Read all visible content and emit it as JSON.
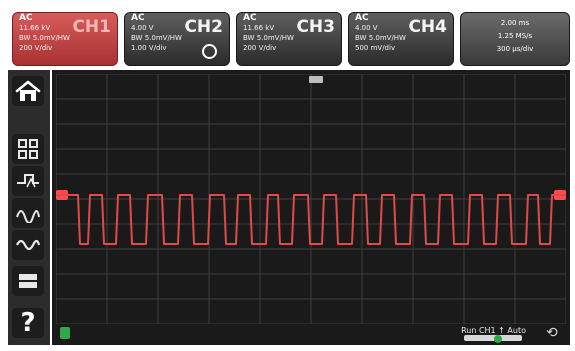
{
  "channels": [
    {
      "name": "CH1",
      "coupling": "AC",
      "lines": [
        "11.66 kV",
        "BW 5.0mV/HW",
        "200 V/div"
      ],
      "active": true,
      "color": "#b83a3a"
    },
    {
      "name": "CH2",
      "coupling": "AC",
      "lines": [
        "4.00 V",
        "BW 5.0mV/HW",
        "1.00 V/div"
      ],
      "active": false,
      "color": "#3b3b3b"
    },
    {
      "name": "CH3",
      "coupling": "AC",
      "lines": [
        "11.66 kV",
        "BW 5.0mV/HW",
        "200 V/div"
      ],
      "active": false,
      "color": "#3b3b3b"
    },
    {
      "name": "CH4",
      "coupling": "AC",
      "lines": [
        "4.00 V",
        "BW 5.0mV/HW",
        "500 mV/div"
      ],
      "active": false,
      "color": "#3b3b3b"
    }
  ],
  "timebase": {
    "lines": [
      "2.00 ms",
      "1.25 MS/s",
      "300 µs/div"
    ]
  },
  "status": {
    "text": "Run  CH1  ↑  Auto"
  },
  "icons": {
    "home": "home-icon",
    "apps": "apps-grid-icon",
    "trigger": "trigger-icon",
    "math": "math-wave-icon",
    "waves": "waveform-icon",
    "storage": "storage-icon",
    "help": "help-icon"
  },
  "colors": {
    "trace": "#e04a4a",
    "background": "#1a1a1a",
    "grid": "#444444"
  }
}
